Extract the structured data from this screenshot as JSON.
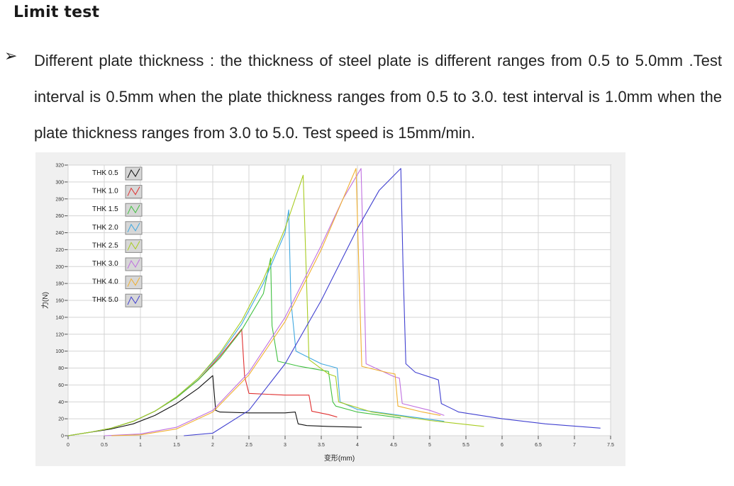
{
  "heading": "Limit test",
  "bullet_symbol": "➢",
  "paragraph": "Different plate thickness : the thickness of steel plate is different ranges from 0.5 to 5.0mm .Test interval is 0.5mm when the plate thickness ranges from 0.5 to 3.0. test interval is 1.0mm when the plate thickness ranges from 3.0 to 5.0. Test speed is 15mm/min.",
  "chart_data": {
    "type": "line",
    "xlabel": "变形(mm)",
    "ylabel": "力(N)",
    "xlim": [
      0,
      7.5
    ],
    "ylim": [
      0,
      320
    ],
    "xticks": [
      0,
      0.5,
      1,
      1.5,
      2,
      2.5,
      3,
      3.5,
      4,
      4.5,
      5,
      5.5,
      6,
      6.5,
      7,
      7.5
    ],
    "xtick_labels": [
      "0",
      "0.5",
      "1",
      "1.5",
      "2",
      "2.5",
      "3",
      "3.5",
      "4",
      "4.5",
      "5",
      "5.5",
      "6",
      "6.5",
      "7",
      "7.5"
    ],
    "yticks": [
      0,
      20,
      40,
      60,
      80,
      100,
      120,
      140,
      160,
      180,
      200,
      220,
      240,
      260,
      280,
      300,
      320
    ],
    "grid": true,
    "legend": "top-left",
    "series": [
      {
        "name": "THK 0.5",
        "color": "#111111",
        "x": [
          0,
          0.3,
          0.6,
          0.9,
          1.2,
          1.5,
          1.8,
          2.0,
          2.04,
          2.1,
          2.5,
          3.0,
          3.14,
          3.18,
          3.3,
          3.6,
          4.06
        ],
        "y": [
          0,
          4,
          8,
          14,
          24,
          38,
          56,
          71,
          30,
          28,
          27,
          27,
          28,
          14,
          12,
          11,
          10
        ]
      },
      {
        "name": "THK 1.0",
        "color": "#e03030",
        "x": [
          0,
          0.3,
          0.6,
          0.9,
          1.2,
          1.5,
          1.8,
          2.1,
          2.4,
          2.44,
          2.5,
          3.0,
          3.33,
          3.37,
          3.6,
          3.72
        ],
        "y": [
          0,
          4,
          9,
          17,
          29,
          45,
          66,
          94,
          126,
          70,
          50,
          48,
          48,
          29,
          25,
          22
        ]
      },
      {
        "name": "THK 1.5",
        "color": "#40c040",
        "x": [
          0,
          0.3,
          0.6,
          0.9,
          1.2,
          1.5,
          1.8,
          2.1,
          2.4,
          2.7,
          2.8,
          2.82,
          2.9,
          3.2,
          3.6,
          3.66,
          3.7,
          4.0,
          4.6
        ],
        "y": [
          0,
          4,
          9,
          17,
          29,
          45,
          66,
          92,
          125,
          168,
          210,
          130,
          88,
          82,
          76,
          40,
          35,
          28,
          21
        ]
      },
      {
        "name": "THK 2.0",
        "color": "#40a8e0",
        "x": [
          0,
          0.3,
          0.6,
          0.9,
          1.2,
          1.5,
          1.8,
          2.1,
          2.4,
          2.7,
          3.0,
          3.05,
          3.08,
          3.15,
          3.5,
          3.72,
          3.76,
          4.0,
          4.6,
          5.2
        ],
        "y": [
          0,
          4,
          9,
          17,
          29,
          46,
          68,
          96,
          132,
          180,
          240,
          267,
          160,
          100,
          85,
          80,
          40,
          31,
          24,
          17
        ]
      },
      {
        "name": "THK 2.5",
        "color": "#a8cc20",
        "x": [
          0,
          0.3,
          0.6,
          0.9,
          1.2,
          1.5,
          1.8,
          2.1,
          2.4,
          2.7,
          3.0,
          3.25,
          3.29,
          3.33,
          3.6,
          3.7,
          3.74,
          4.2,
          5.0,
          5.75
        ],
        "y": [
          0,
          4,
          9,
          17,
          29,
          46,
          68,
          98,
          136,
          185,
          245,
          308,
          200,
          90,
          73,
          70,
          40,
          28,
          18,
          11
        ]
      },
      {
        "name": "THK 3.0",
        "color": "#c070e0",
        "x": [
          0.5,
          1.0,
          1.5,
          2.0,
          2.5,
          3.0,
          3.5,
          3.8,
          4.05,
          4.08,
          4.12,
          4.5,
          4.58,
          4.62,
          5.0,
          5.2
        ],
        "y": [
          0,
          2,
          10,
          30,
          75,
          140,
          225,
          280,
          316,
          220,
          85,
          70,
          68,
          38,
          30,
          24
        ]
      },
      {
        "name": "THK 4.0",
        "color": "#f0b030",
        "x": [
          0.6,
          1.0,
          1.5,
          2.0,
          2.5,
          3.0,
          3.5,
          3.8,
          3.98,
          4.02,
          4.06,
          4.4,
          4.52,
          4.56,
          4.9,
          5.15
        ],
        "y": [
          0,
          1,
          8,
          28,
          72,
          135,
          220,
          280,
          316,
          200,
          82,
          75,
          73,
          35,
          28,
          24
        ]
      },
      {
        "name": "THK 5.0",
        "color": "#4040d0",
        "x": [
          1.6,
          2.0,
          2.5,
          3.0,
          3.5,
          4.0,
          4.3,
          4.6,
          4.63,
          4.67,
          4.8,
          5.12,
          5.16,
          5.4,
          6.0,
          6.6,
          7.36
        ],
        "y": [
          0,
          3,
          30,
          85,
          160,
          245,
          290,
          316,
          200,
          85,
          75,
          66,
          38,
          28,
          20,
          14,
          9
        ]
      }
    ]
  }
}
